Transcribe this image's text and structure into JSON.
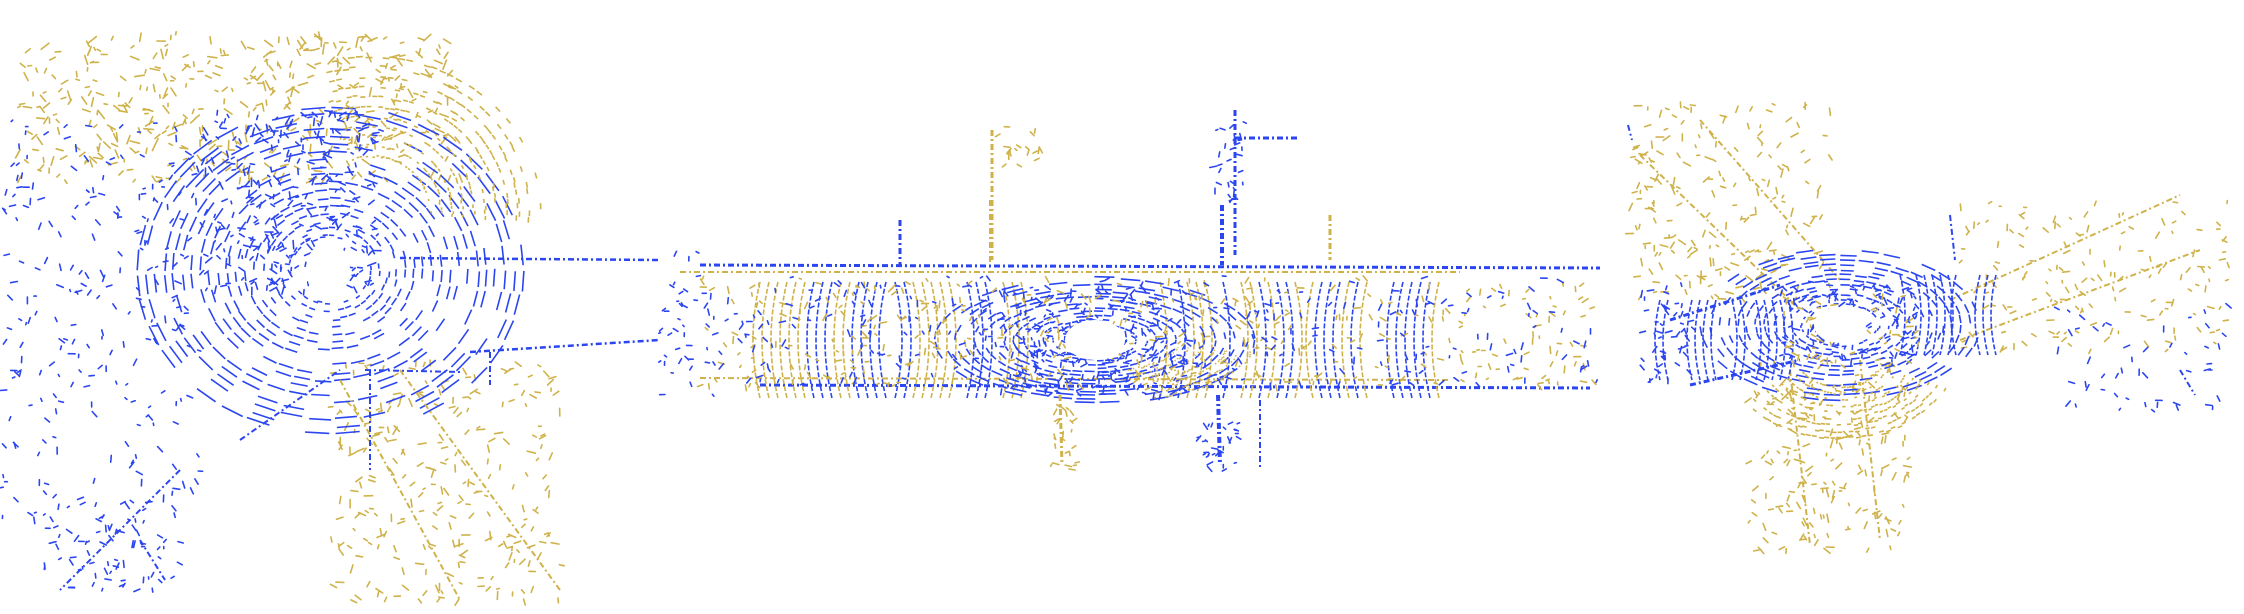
{
  "image": {
    "type": "lidar-point-cloud-birds-eye-view",
    "background": "#ffffff",
    "point_clouds": [
      {
        "name": "point-cloud-blue",
        "color": "#2b46f0"
      },
      {
        "name": "point-cloud-gold",
        "color": "#cfb24a"
      }
    ],
    "panels": [
      {
        "name": "scan-panel-left",
        "scene": "intersection"
      },
      {
        "name": "scan-panel-center",
        "scene": "straight-road"
      },
      {
        "name": "scan-panel-right",
        "scene": "intersection"
      }
    ]
  }
}
